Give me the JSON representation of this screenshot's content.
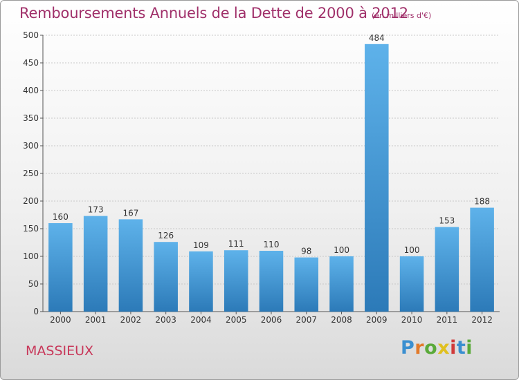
{
  "header": {
    "title": "Remboursements Annuels de la Dette de 2000 à 2012",
    "unit": "(en milliers d'€)"
  },
  "footer": {
    "town": "MASSIEUX",
    "logo": "Proxiti",
    "logo_colors": [
      "#3a8fd0",
      "#e27a2a",
      "#5aaa3a",
      "#e0c020",
      "#d03a3a",
      "#3a8fd0",
      "#5aaa3a"
    ]
  },
  "colors": {
    "bar_top": "#5eb2ea",
    "bar_bottom": "#2c7ab8",
    "title": "#a0306a",
    "town": "#c8385a"
  },
  "chart_data": {
    "type": "bar",
    "categories": [
      "2000",
      "2001",
      "2002",
      "2003",
      "2004",
      "2005",
      "2006",
      "2007",
      "2008",
      "2009",
      "2010",
      "2011",
      "2012"
    ],
    "values": [
      160,
      173,
      167,
      126,
      109,
      111,
      110,
      98,
      100,
      484,
      100,
      153,
      188
    ],
    "ylim": [
      0,
      500
    ],
    "yticks": [
      0,
      50,
      100,
      150,
      200,
      250,
      300,
      350,
      400,
      450,
      500
    ],
    "grid": true
  }
}
